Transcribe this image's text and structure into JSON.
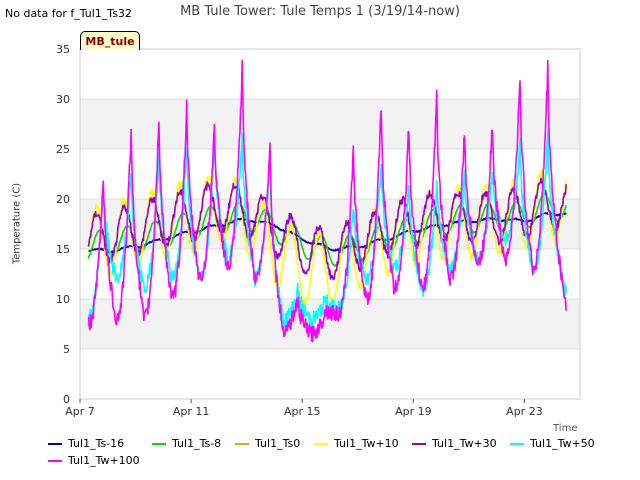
{
  "no_data_note": "No data for f_Tul1_Ts32",
  "chart_data": {
    "type": "line",
    "title": "MB Tule Tower: Tule Temps 1 (3/19/14-now)",
    "xlabel": "Time",
    "ylabel": "Temperature (C)",
    "ylim": [
      0,
      35
    ],
    "yticks": [
      "0",
      "5",
      "10",
      "15",
      "20",
      "25",
      "30",
      "35"
    ],
    "xlim_days": [
      0,
      18
    ],
    "xticks": [
      {
        "day": 0,
        "label": "Apr 7"
      },
      {
        "day": 4,
        "label": "Apr 11"
      },
      {
        "day": 8,
        "label": "Apr 15"
      },
      {
        "day": 12,
        "label": "Apr 19"
      },
      {
        "day": 16,
        "label": "Apr 23"
      }
    ],
    "site_badge": "MB_tule",
    "data_range_days": [
      0.3,
      17.5
    ],
    "series": [
      {
        "name": "Tul1_Ts-16",
        "color": "#0000cc",
        "mean": [
          15.0,
          14.8,
          15.2,
          16.0,
          16.7,
          17.4,
          18.0,
          17.4,
          16.0,
          15.0,
          15.2,
          16.0,
          16.8,
          17.4,
          17.8,
          18.0,
          17.8,
          18.6,
          18.4
        ],
        "amp": 0.15,
        "peaks": [],
        "troughs": []
      },
      {
        "name": "Tul1_Ts-8",
        "color": "#00dd00",
        "mean": [
          15.0,
          15.6,
          16.0,
          16.6,
          17.4,
          18.0,
          18.4,
          17.2,
          15.6,
          14.6,
          15.2,
          16.0,
          16.8,
          17.8,
          18.0,
          18.2,
          18.4,
          19.4,
          18.4
        ],
        "amp": 1.4,
        "peaks": [],
        "troughs": []
      },
      {
        "name": "Tul1_Ts0",
        "color": "#ff9900",
        "mean": [],
        "amp": 0,
        "peaks": [],
        "troughs": []
      },
      {
        "name": "Tul1_Tw+10",
        "color": "#ffff00",
        "mean": [
          15.5,
          16.0,
          16.8,
          17.5,
          18.2,
          19.0,
          18.0,
          15.0,
          13.0,
          13.0,
          14.5,
          16.0,
          17.0,
          17.5,
          17.8,
          18.0,
          18.5,
          19.5,
          18.0
        ],
        "amp": 3.5,
        "peaks": [],
        "troughs": []
      },
      {
        "name": "Tul1_Tw+30",
        "color": "#9900cc",
        "mean": [
          15.8,
          16.2,
          17.0,
          17.8,
          18.4,
          19.2,
          18.8,
          17.0,
          15.0,
          14.5,
          15.5,
          16.8,
          17.8,
          18.2,
          18.2,
          18.2,
          18.6,
          19.6,
          18.6
        ],
        "amp": 2.5,
        "peaks": [],
        "troughs": []
      },
      {
        "name": "Tul1_Tw+50",
        "color": "#00ffff",
        "mean": [],
        "amp": 0,
        "peaks": [
          22,
          23,
          25,
          26,
          27,
          27,
          25,
          11,
          10,
          20,
          24,
          22,
          22,
          23,
          23,
          26,
          27
        ],
        "troughs": [
          8,
          12,
          11,
          12,
          12,
          14,
          12,
          8,
          8,
          9,
          12,
          13,
          11,
          13,
          14,
          16,
          13
        ]
      },
      {
        "name": "Tul1_Tw+100",
        "color": "#ff00ff",
        "mean": [],
        "amp": 0,
        "peaks": [
          23,
          28,
          29,
          30,
          28,
          34,
          26,
          10,
          9,
          26,
          30,
          28,
          31,
          27,
          28,
          33,
          34
        ],
        "troughs": [
          7.5,
          8,
          8,
          10,
          12,
          13,
          12,
          7,
          6.5,
          8.5,
          10,
          11,
          11,
          12,
          13.5,
          14,
          13
        ]
      }
    ]
  }
}
